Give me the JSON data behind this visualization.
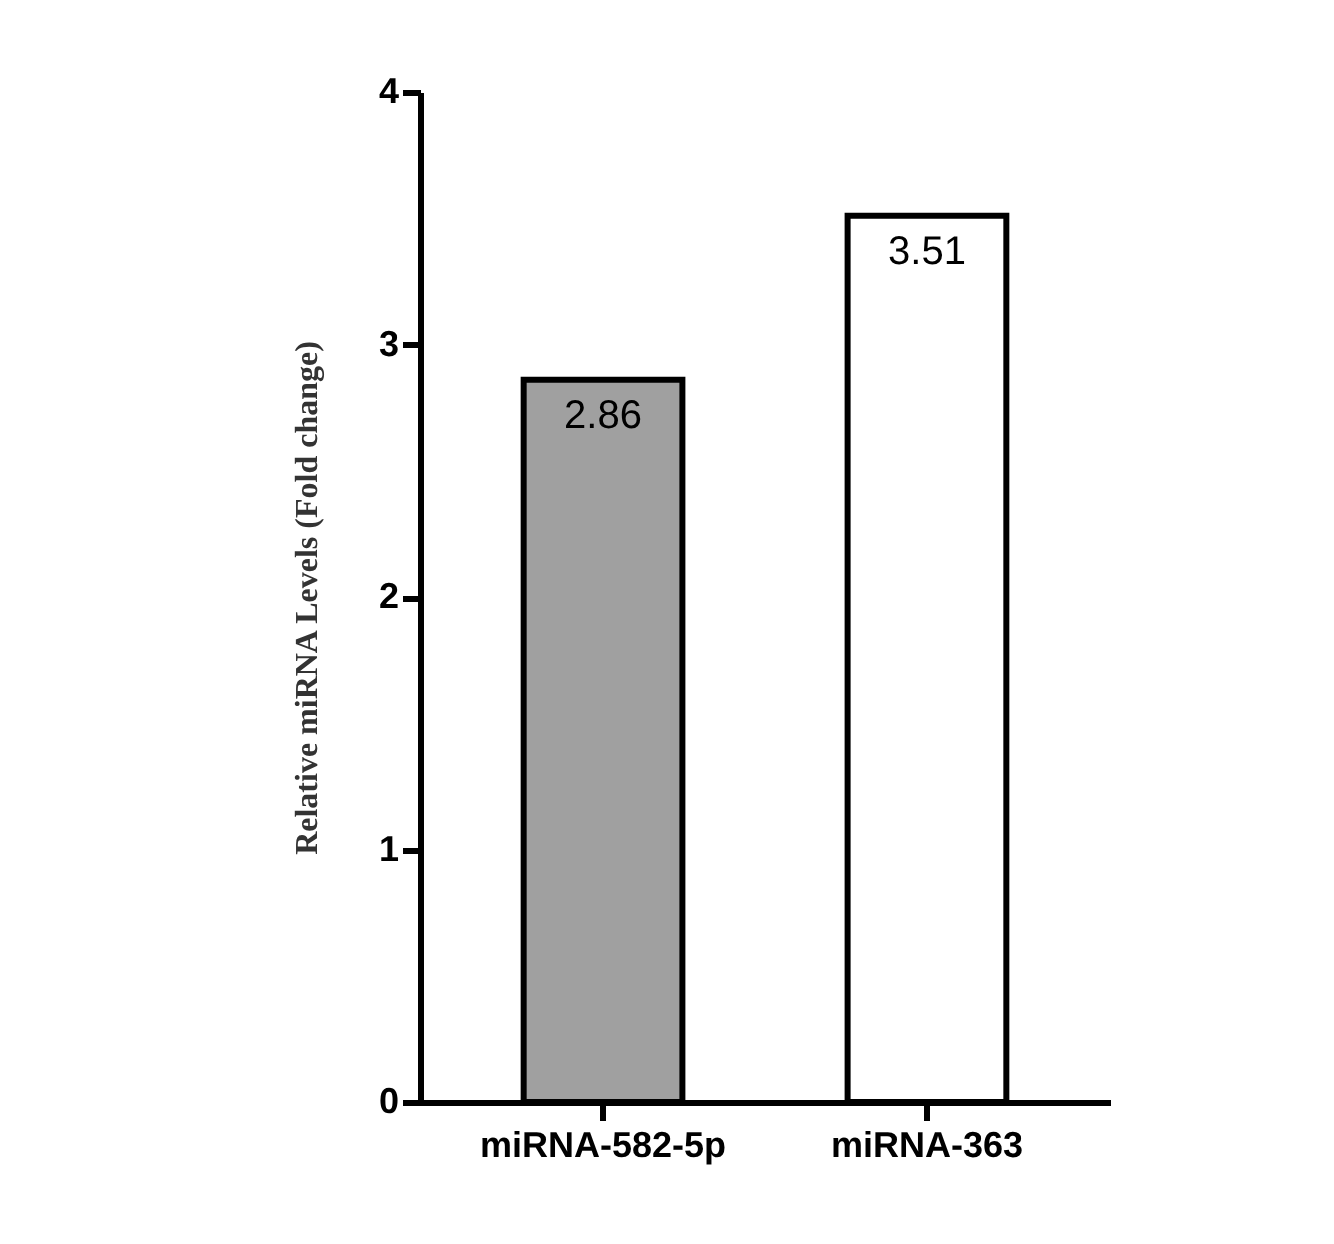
{
  "chart_data": {
    "type": "bar",
    "ylabel": "Relative miRNA Levels (Fold change)",
    "categories": [
      "miRNA-582-5p",
      "miRNA-363"
    ],
    "values": [
      2.86,
      3.51
    ],
    "colors": [
      "#a0a0a0",
      "#ffffff"
    ],
    "ylim": [
      0,
      4
    ],
    "yticks": [
      0,
      1,
      2,
      3,
      4
    ],
    "data_labels": true,
    "grid": false
  }
}
